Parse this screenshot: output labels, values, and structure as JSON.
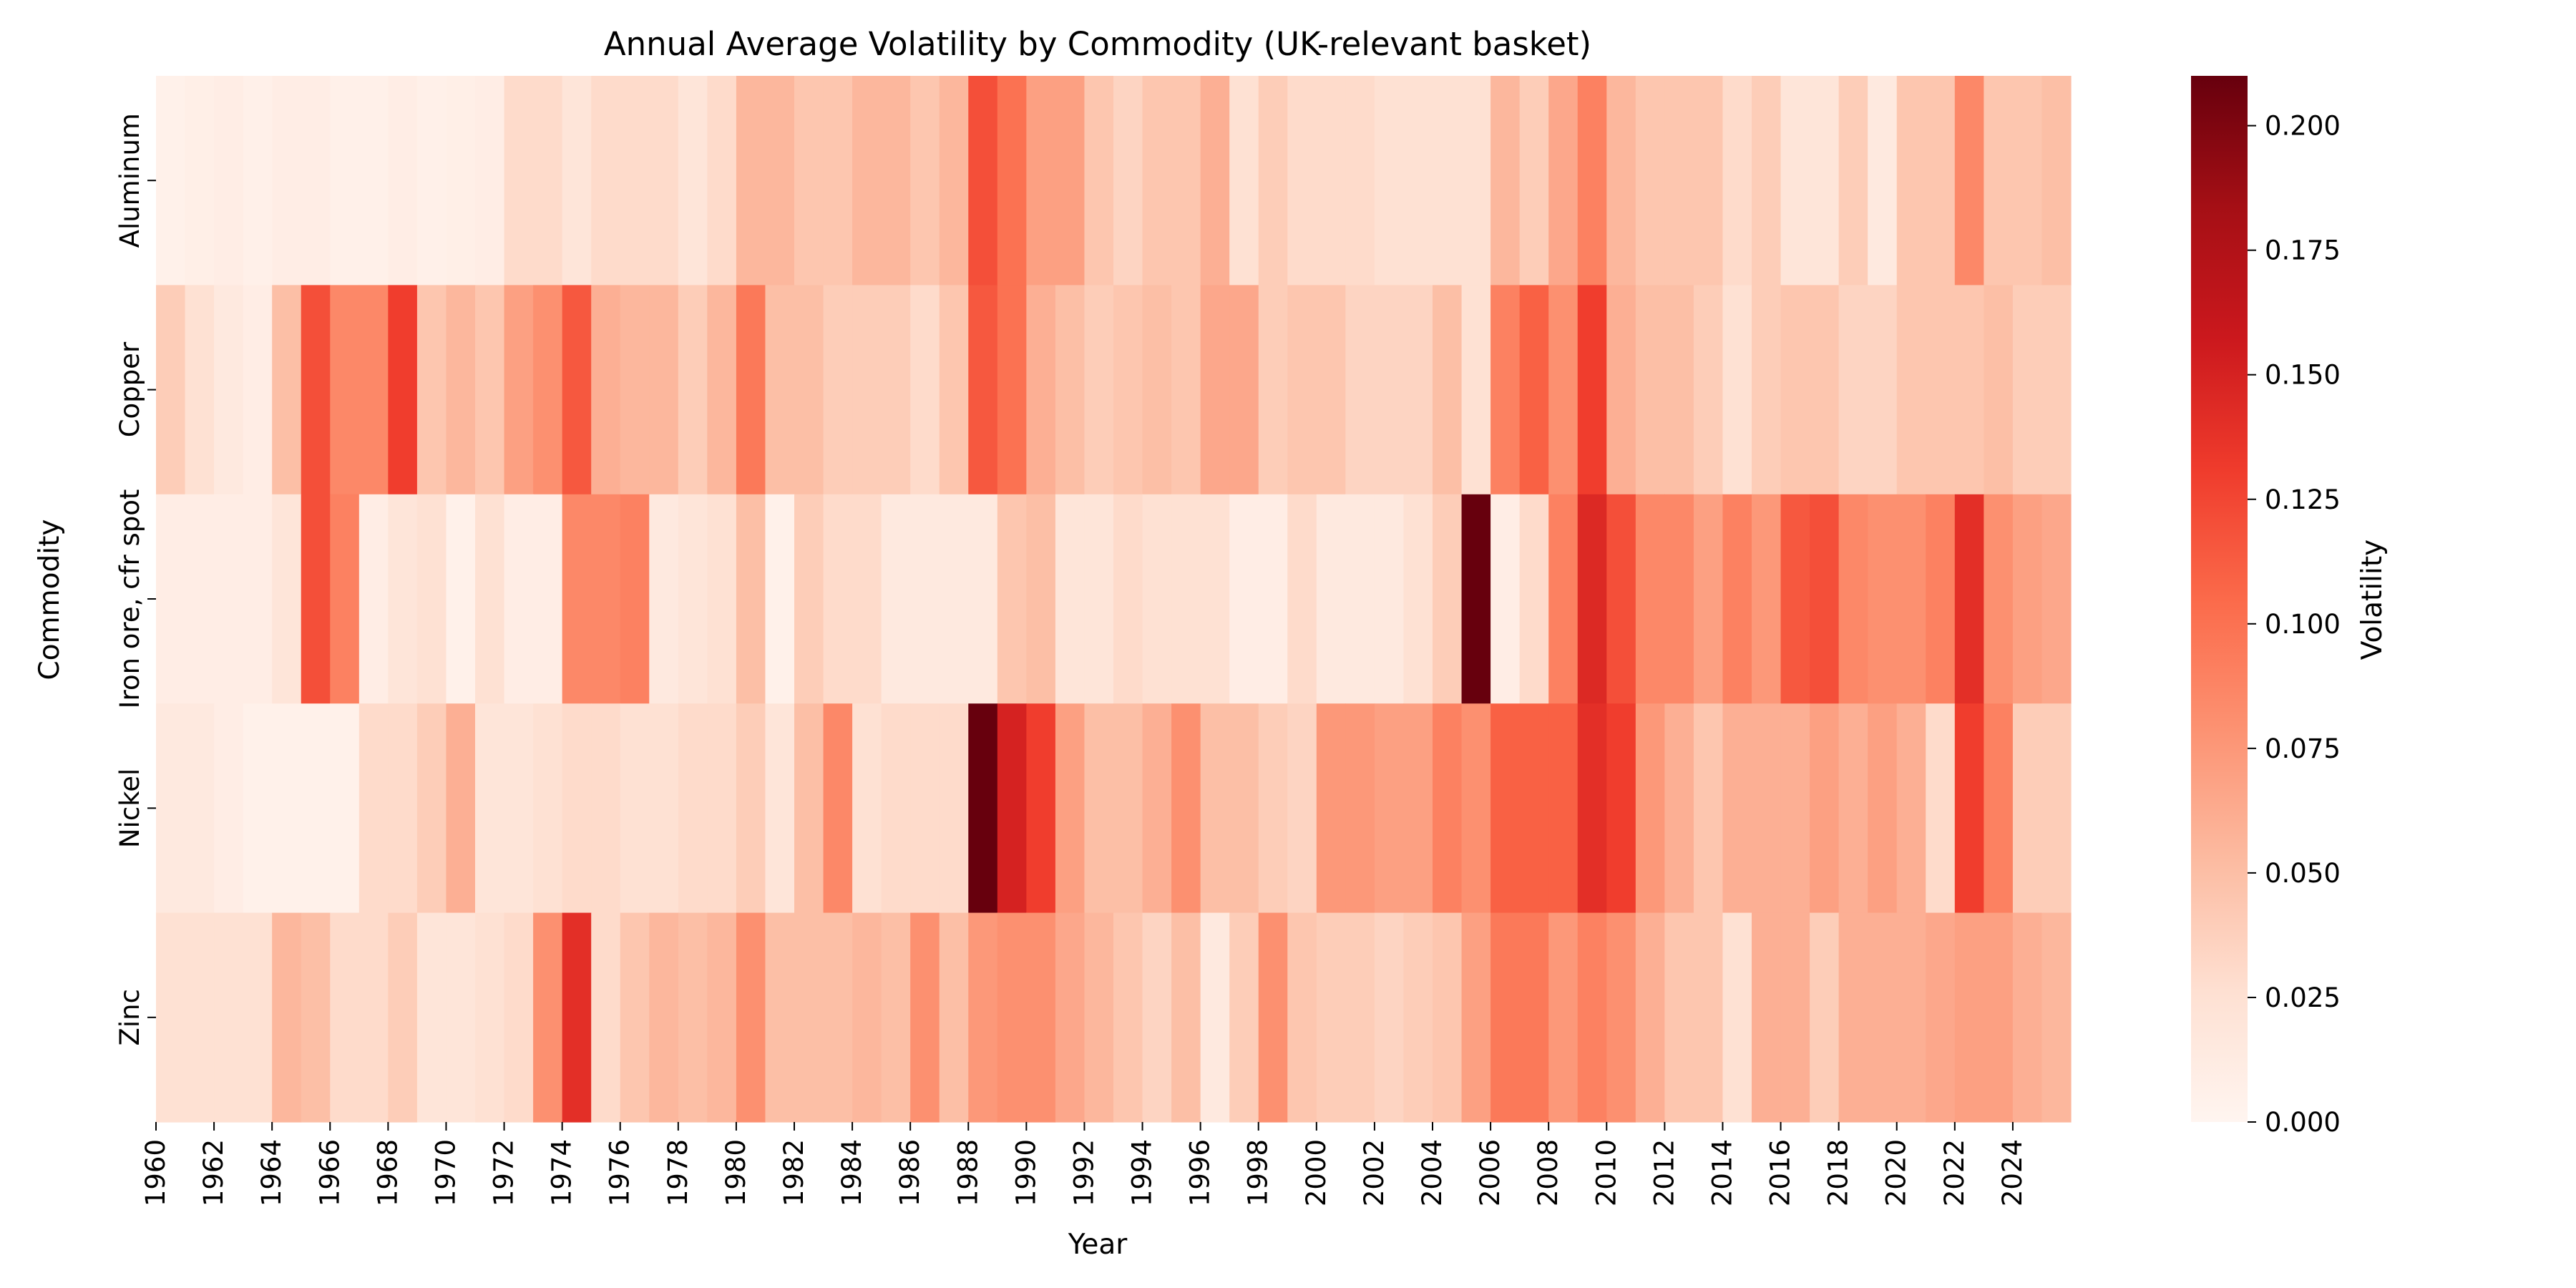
{
  "chart_data": {
    "type": "heatmap",
    "title": "Annual Average Volatility by Commodity (UK-relevant basket)",
    "xlabel": "Year",
    "ylabel": "Commodity",
    "colorbar_label": "Volatility",
    "colormap": "Reds",
    "vmin": 0.0,
    "vmax": 0.21,
    "colorbar_ticks": [
      "0.000",
      "0.025",
      "0.050",
      "0.075",
      "0.100",
      "0.125",
      "0.150",
      "0.175",
      "0.200"
    ],
    "colorbar_tick_values": [
      0.0,
      0.025,
      0.05,
      0.075,
      0.1,
      0.125,
      0.15,
      0.175,
      0.2
    ],
    "years": [
      1960,
      1961,
      1962,
      1963,
      1964,
      1965,
      1966,
      1967,
      1968,
      1969,
      1970,
      1971,
      1972,
      1973,
      1974,
      1975,
      1976,
      1977,
      1978,
      1979,
      1980,
      1981,
      1982,
      1983,
      1984,
      1985,
      1986,
      1987,
      1988,
      1989,
      1990,
      1991,
      1992,
      1993,
      1994,
      1995,
      1996,
      1997,
      1998,
      1999,
      2000,
      2001,
      2002,
      2003,
      2004,
      2005,
      2006,
      2007,
      2008,
      2009,
      2010,
      2011,
      2012,
      2013,
      2014,
      2015,
      2016,
      2017,
      2018,
      2019,
      2020,
      2021,
      2022,
      2023,
      2024,
      2025
    ],
    "x_tick_labels": [
      "1960",
      "1962",
      "1964",
      "1966",
      "1968",
      "1970",
      "1972",
      "1974",
      "1976",
      "1978",
      "1980",
      "1982",
      "1984",
      "1986",
      "1988",
      "1990",
      "1992",
      "1994",
      "1996",
      "1998",
      "2000",
      "2002",
      "2004",
      "2006",
      "2008",
      "2010",
      "2012",
      "2014",
      "2016",
      "2018",
      "2020",
      "2022",
      "2024"
    ],
    "commodities": [
      "Aluminum",
      "Copper",
      "Iron ore, cfr spot",
      "Nickel",
      "Zinc"
    ],
    "values": [
      [
        0.005,
        0.008,
        0.01,
        0.006,
        0.01,
        0.01,
        0.006,
        0.006,
        0.01,
        0.006,
        0.008,
        0.01,
        0.03,
        0.03,
        0.02,
        0.03,
        0.03,
        0.03,
        0.02,
        0.03,
        0.055,
        0.055,
        0.045,
        0.045,
        0.055,
        0.055,
        0.045,
        0.055,
        0.12,
        0.1,
        0.07,
        0.07,
        0.045,
        0.035,
        0.045,
        0.045,
        0.06,
        0.025,
        0.04,
        0.03,
        0.03,
        0.03,
        0.025,
        0.025,
        0.025,
        0.025,
        0.055,
        0.04,
        0.065,
        0.09,
        0.055,
        0.045,
        0.045,
        0.045,
        0.03,
        0.04,
        0.02,
        0.02,
        0.04,
        0.015,
        0.045,
        0.045,
        0.085,
        0.045,
        0.045,
        0.05
      ],
      [
        0.04,
        0.025,
        0.015,
        0.01,
        0.05,
        0.12,
        0.085,
        0.085,
        0.13,
        0.045,
        0.055,
        0.045,
        0.07,
        0.08,
        0.115,
        0.06,
        0.055,
        0.055,
        0.04,
        0.055,
        0.095,
        0.05,
        0.05,
        0.04,
        0.04,
        0.04,
        0.03,
        0.045,
        0.115,
        0.1,
        0.06,
        0.05,
        0.04,
        0.045,
        0.05,
        0.045,
        0.065,
        0.065,
        0.04,
        0.045,
        0.045,
        0.035,
        0.035,
        0.035,
        0.05,
        0.025,
        0.09,
        0.11,
        0.08,
        0.13,
        0.06,
        0.05,
        0.05,
        0.04,
        0.025,
        0.04,
        0.045,
        0.045,
        0.035,
        0.035,
        0.045,
        0.045,
        0.045,
        0.05,
        0.04,
        0.04
      ],
      [
        0.01,
        0.01,
        0.01,
        0.01,
        0.02,
        0.12,
        0.09,
        0.01,
        0.02,
        0.025,
        0.005,
        0.025,
        0.01,
        0.01,
        0.085,
        0.085,
        0.09,
        0.015,
        0.02,
        0.025,
        0.05,
        0.005,
        0.04,
        0.03,
        0.03,
        0.015,
        0.015,
        0.015,
        0.015,
        0.045,
        0.05,
        0.02,
        0.02,
        0.03,
        0.025,
        0.025,
        0.025,
        0.01,
        0.01,
        0.03,
        0.015,
        0.015,
        0.015,
        0.025,
        0.04,
        0.21,
        0.01,
        0.03,
        0.09,
        0.145,
        0.12,
        0.085,
        0.085,
        0.07,
        0.09,
        0.075,
        0.115,
        0.12,
        0.085,
        0.08,
        0.08,
        0.09,
        0.14,
        0.08,
        0.07,
        0.065
      ],
      [
        0.015,
        0.015,
        0.01,
        0.005,
        0.005,
        0.005,
        0.005,
        0.03,
        0.03,
        0.04,
        0.06,
        0.02,
        0.02,
        0.025,
        0.03,
        0.03,
        0.025,
        0.025,
        0.03,
        0.03,
        0.04,
        0.02,
        0.05,
        0.085,
        0.025,
        0.03,
        0.03,
        0.03,
        0.21,
        0.15,
        0.13,
        0.07,
        0.05,
        0.05,
        0.06,
        0.08,
        0.05,
        0.05,
        0.04,
        0.035,
        0.075,
        0.075,
        0.07,
        0.07,
        0.09,
        0.08,
        0.11,
        0.11,
        0.11,
        0.14,
        0.13,
        0.075,
        0.06,
        0.045,
        0.06,
        0.06,
        0.06,
        0.07,
        0.06,
        0.07,
        0.06,
        0.03,
        0.13,
        0.09,
        0.04,
        0.04
      ],
      [
        0.025,
        0.025,
        0.025,
        0.025,
        0.055,
        0.05,
        0.03,
        0.03,
        0.04,
        0.02,
        0.02,
        0.025,
        0.03,
        0.08,
        0.14,
        0.03,
        0.045,
        0.055,
        0.05,
        0.055,
        0.08,
        0.05,
        0.05,
        0.05,
        0.055,
        0.05,
        0.08,
        0.05,
        0.075,
        0.08,
        0.08,
        0.065,
        0.055,
        0.045,
        0.035,
        0.05,
        0.015,
        0.04,
        0.08,
        0.045,
        0.04,
        0.04,
        0.035,
        0.04,
        0.045,
        0.07,
        0.095,
        0.095,
        0.075,
        0.09,
        0.08,
        0.06,
        0.045,
        0.045,
        0.025,
        0.06,
        0.06,
        0.04,
        0.06,
        0.06,
        0.06,
        0.065,
        0.07,
        0.07,
        0.06,
        0.055
      ]
    ]
  }
}
